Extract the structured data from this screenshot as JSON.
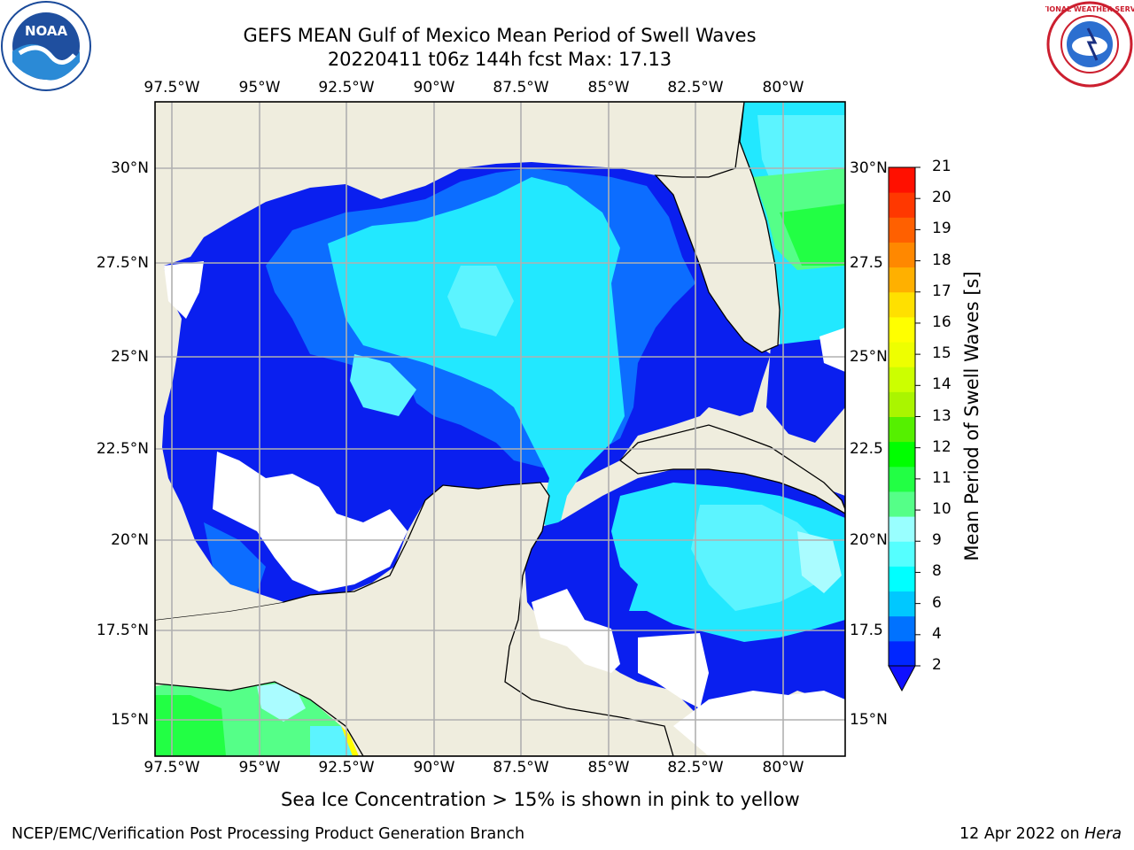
{
  "header": {
    "title": "GEFS MEAN Gulf of Mexico Mean Period of Swell Waves",
    "subtitle": "20220411 t06z 144h fcst   Max: 17.13"
  },
  "map": {
    "lon_labels": [
      "97.5°W",
      "95°W",
      "92.5°W",
      "90°W",
      "87.5°W",
      "85°W",
      "82.5°W",
      "80°W"
    ],
    "lat_labels": [
      "30°N",
      "27.5°N",
      "25°N",
      "22.5°N",
      "20°N",
      "17.5°N",
      "15°N"
    ],
    "lat_labels_right": [
      "30°N",
      "27.5",
      "25°N",
      "22.5",
      "20°N",
      "17.5",
      "15°N"
    ],
    "land_color": "#efedde",
    "grid": true
  },
  "colorbar": {
    "title": "Mean Period of Swell Waves [s]",
    "tick_labels": [
      "2",
      "4",
      "6",
      "8",
      "9",
      "10",
      "11",
      "12",
      "13",
      "14",
      "15",
      "16",
      "17",
      "18",
      "19",
      "20",
      "21"
    ],
    "colors": [
      "#0026ff",
      "#0072ff",
      "#00c8ff",
      "#00ffff",
      "#55ffff",
      "#99ffff",
      "#55ff88",
      "#22ff44",
      "#00ff00",
      "#55f000",
      "#aaf500",
      "#ccff00",
      "#eeff00",
      "#ffff00",
      "#ffe000",
      "#ffb000",
      "#ff8800",
      "#ff6000",
      "#ff3800",
      "#ff1000"
    ],
    "extend_color": "#1010ff"
  },
  "annotation": "Sea Ice Concentration > 15% is shown in pink to yellow",
  "footer": {
    "left": "NCEP/EMC/Verification Post Processing Product Generation Branch",
    "date": "12 Apr 2022 on ",
    "machine": "Hera"
  },
  "logos": {
    "noaa": "NOAA",
    "nws": "NATIONAL WEATHER SERVICE"
  }
}
